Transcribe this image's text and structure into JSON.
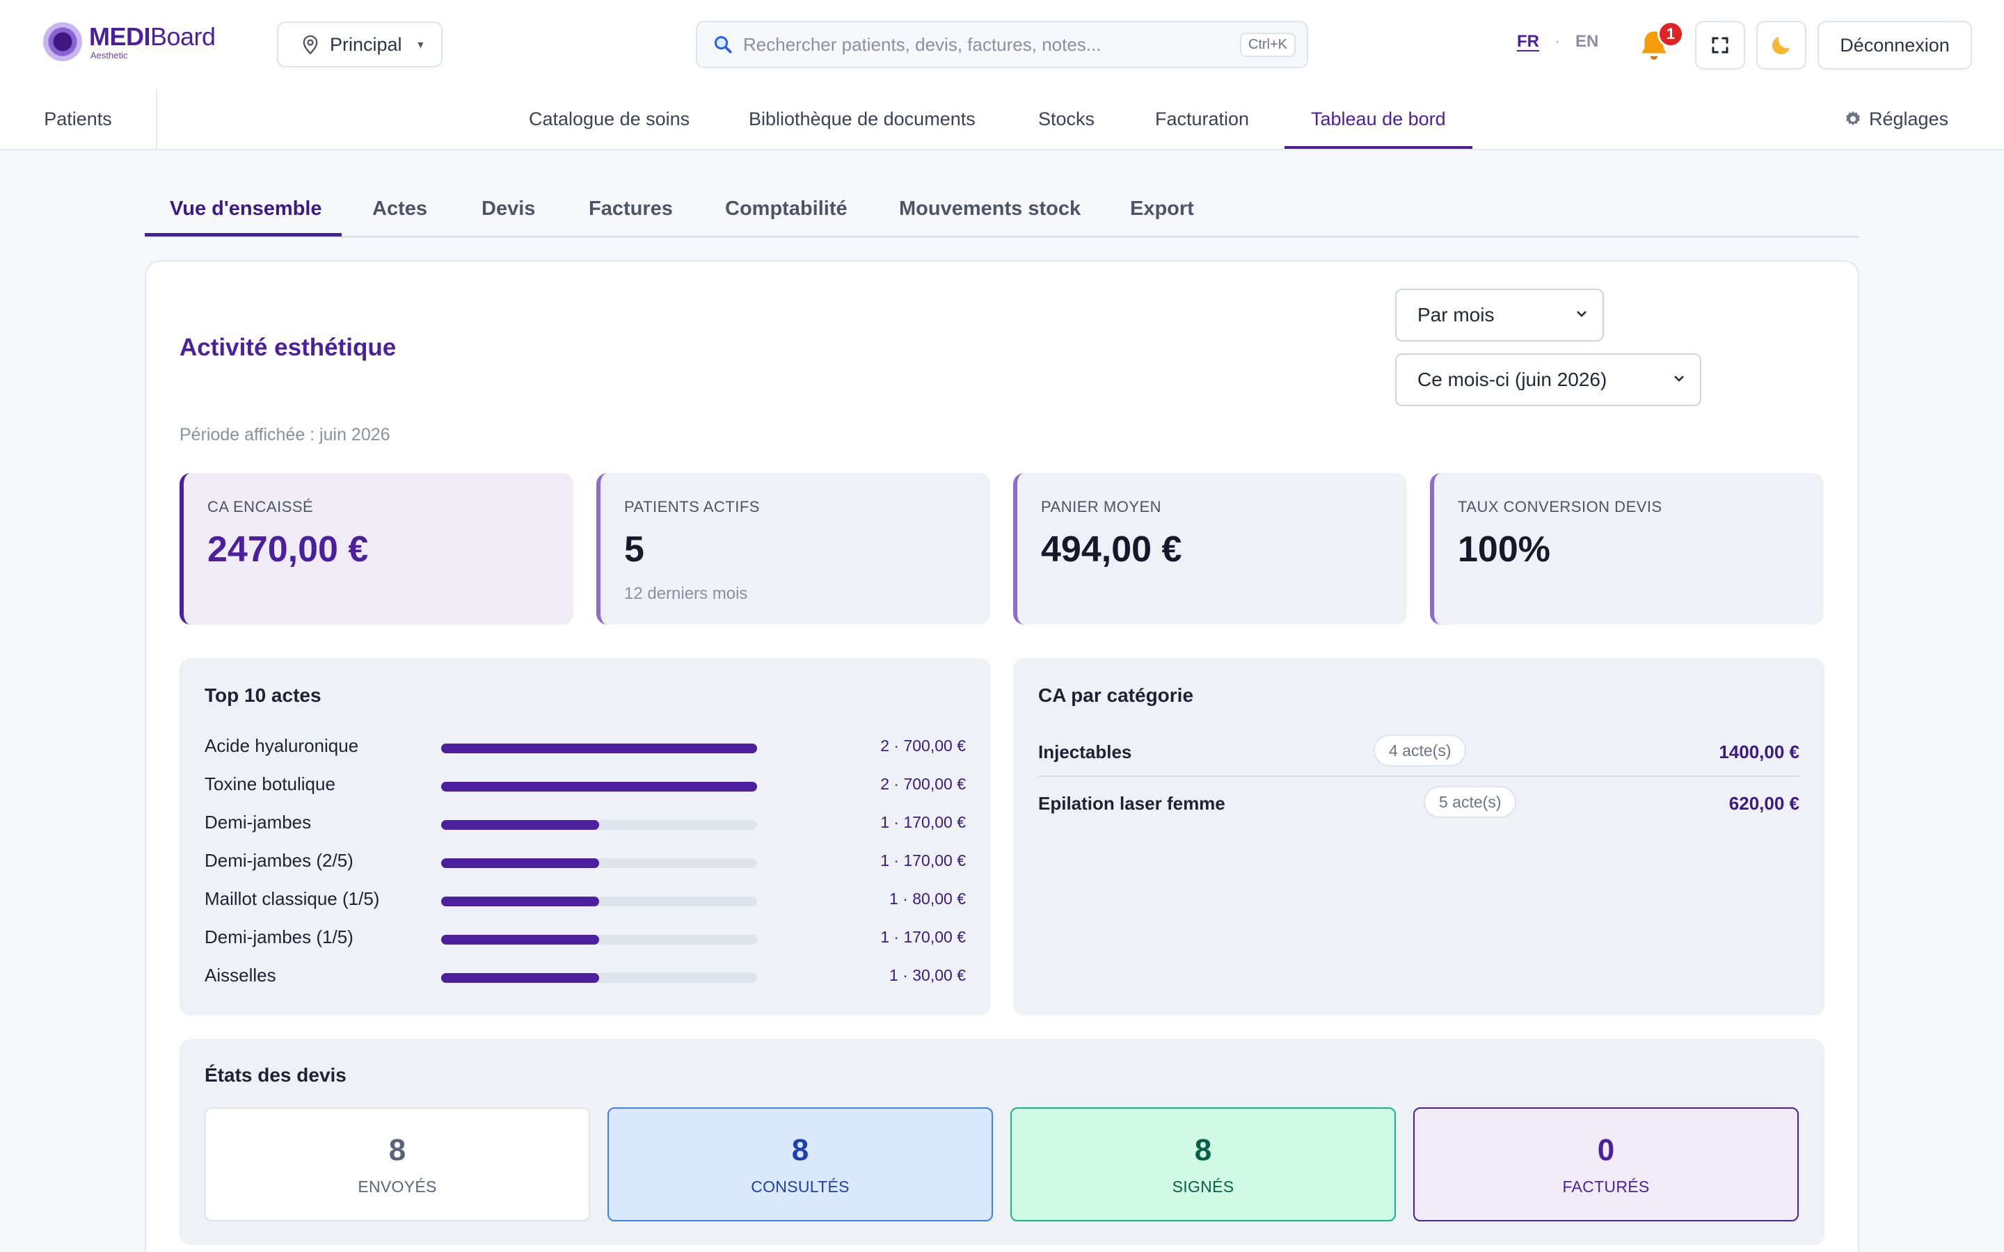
{
  "brand": {
    "name_bold": "MEDI",
    "name_light": "Board",
    "subtitle": "Aesthetic"
  },
  "header": {
    "branch": "Principal",
    "search_placeholder": "Rechercher patients, devis, factures, notes...",
    "search_shortcut": "Ctrl+K",
    "lang_fr": "FR",
    "lang_sep": "·",
    "lang_en": "EN",
    "notifications_count": "1",
    "logout_label": "Déconnexion"
  },
  "nav": {
    "patients": "Patients",
    "items": [
      "Catalogue de soins",
      "Bibliothèque de documents",
      "Stocks",
      "Facturation",
      "Tableau de bord"
    ],
    "active": "Tableau de bord",
    "settings": "Réglages"
  },
  "subtabs": {
    "items": [
      "Vue d'ensemble",
      "Actes",
      "Devis",
      "Factures",
      "Comptabilité",
      "Mouvements stock",
      "Export"
    ],
    "active": "Vue d'ensemble"
  },
  "dashboard": {
    "title": "Activité esthétique",
    "granularity": "Par mois",
    "period_select": "Ce mois-ci (juin 2026)",
    "period_label": "Période affichée : juin 2026"
  },
  "kpis": [
    {
      "label": "CA encaissé",
      "value": "2470,00 €",
      "sub": ""
    },
    {
      "label": "Patients actifs",
      "value": "5",
      "sub": "12 derniers mois"
    },
    {
      "label": "Panier moyen",
      "value": "494,00 €",
      "sub": ""
    },
    {
      "label": "Taux conversion devis",
      "value": "100%",
      "sub": ""
    }
  ],
  "top_actes": {
    "title": "Top 10 actes",
    "rows": [
      {
        "name": "Acide hyaluronique",
        "count": 2,
        "amount": "700,00 €",
        "value_label": "2 · 700,00 €",
        "bar_fraction": 1.0
      },
      {
        "name": "Toxine botulique",
        "count": 2,
        "amount": "700,00 €",
        "value_label": "2 · 700,00 €",
        "bar_fraction": 1.0
      },
      {
        "name": "Demi-jambes",
        "count": 1,
        "amount": "170,00 €",
        "value_label": "1 · 170,00 €",
        "bar_fraction": 0.5
      },
      {
        "name": "Demi-jambes (2/5)",
        "count": 1,
        "amount": "170,00 €",
        "value_label": "1 · 170,00 €",
        "bar_fraction": 0.5
      },
      {
        "name": "Maillot classique (1/5)",
        "count": 1,
        "amount": "80,00 €",
        "value_label": "1 · 80,00 €",
        "bar_fraction": 0.5
      },
      {
        "name": "Demi-jambes (1/5)",
        "count": 1,
        "amount": "170,00 €",
        "value_label": "1 · 170,00 €",
        "bar_fraction": 0.5
      },
      {
        "name": "Aisselles",
        "count": 1,
        "amount": "30,00 €",
        "value_label": "1 · 30,00 €",
        "bar_fraction": 0.5
      }
    ]
  },
  "ca_categorie": {
    "title": "CA par catégorie",
    "rows": [
      {
        "name": "Injectables",
        "count": "4 acte(s)",
        "value": "1400,00 €"
      },
      {
        "name": "Epilation laser femme",
        "count": "5 acte(s)",
        "value": "620,00 €"
      }
    ]
  },
  "devis_states": {
    "title": "États des devis",
    "items": [
      {
        "count": "8",
        "label": "ENVOYÉS",
        "color": "#5a6478"
      },
      {
        "count": "8",
        "label": "CONSULTÉS",
        "color": "#1e40af"
      },
      {
        "count": "8",
        "label": "SIGNÉS",
        "color": "#065f46"
      },
      {
        "count": "0",
        "label": "FACTURÉS",
        "color": "#4b1f9e"
      }
    ]
  }
}
